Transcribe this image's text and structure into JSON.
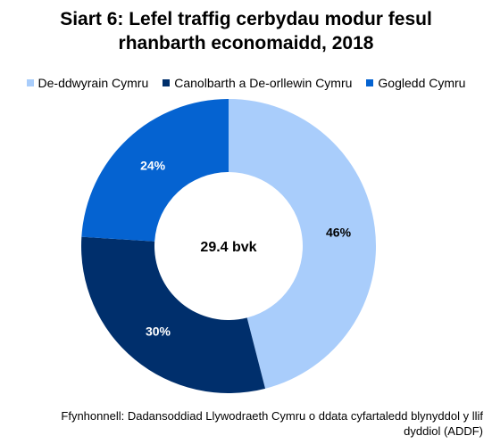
{
  "title_line1": "Siart 6: Lefel traffig cerbydau modur fesul",
  "title_line2": "rhanbarth economaidd, 2018",
  "center_label": "29.4 bvk",
  "source_line1": "Ffynhonnell: Dadansoddiad Llywodraeth Cymru o ddata cyfartaledd blynyddol y llif",
  "source_line2": "dyddiol (ADDF)",
  "chart_data": {
    "type": "pie",
    "title": "Siart 6: Lefel traffig cerbydau modur fesul rhanbarth economaidd, 2018",
    "donut": true,
    "center_label": "29.4 bvk",
    "legend_position": "top",
    "categories": [
      "De-ddwyrain Cymru",
      "Canolbarth a De-orllewin Cymru",
      "Gogledd Cymru"
    ],
    "values": [
      46,
      30,
      24
    ],
    "data_labels": [
      "46%",
      "30%",
      "24%"
    ],
    "colors": [
      "#a9cdfb",
      "#002f6c",
      "#0563d1"
    ],
    "label_colors": [
      "#000000",
      "#ffffff",
      "#ffffff"
    ]
  }
}
